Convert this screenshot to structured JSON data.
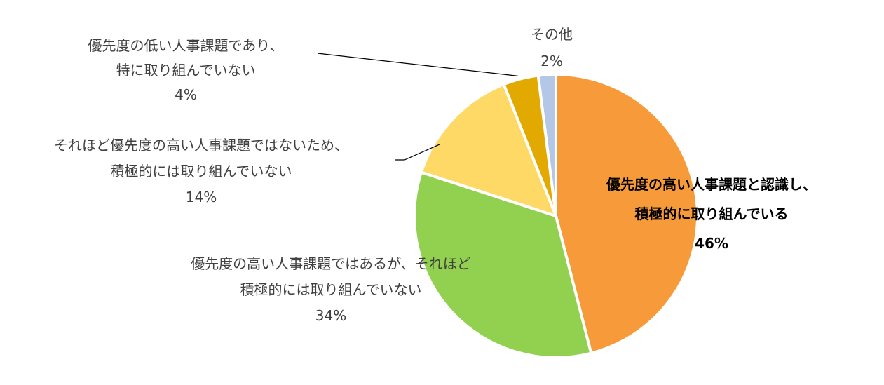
{
  "chart_data": {
    "type": "pie",
    "slices": [
      {
        "label_lines": [
          "優先度の高い人事課題と認識し、",
          "積極的に取り組んでいる"
        ],
        "value": 46,
        "value_label": "46%",
        "color": "#F79A3A",
        "bold": true
      },
      {
        "label_lines": [
          "優先度の高い人事課題ではあるが、それほど",
          "積極的には取り組んでいない"
        ],
        "value": 34,
        "value_label": "34%",
        "color": "#92D050",
        "bold": false
      },
      {
        "label_lines": [
          "それほど優先度の高い人事課題ではないため、",
          "積極的には取り組んでいない"
        ],
        "value": 14,
        "value_label": "14%",
        "color": "#FFD966",
        "bold": false
      },
      {
        "label_lines": [
          "優先度の低い人事課題であり、",
          "特に取り組んでいない"
        ],
        "value": 4,
        "value_label": "4%",
        "color": "#E2AA00",
        "bold": false
      },
      {
        "label_lines": [
          "その他"
        ],
        "value": 2,
        "value_label": "2%",
        "color": "#B4C7E7",
        "bold": false
      }
    ]
  }
}
